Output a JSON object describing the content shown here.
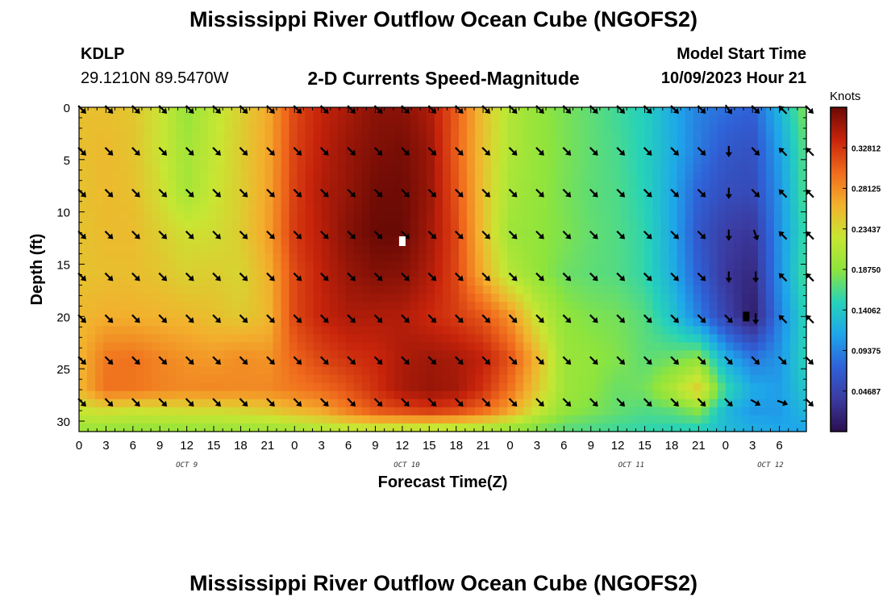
{
  "header": {
    "title": "Mississippi River Outflow Ocean Cube (NGOFS2)",
    "station_id": "KDLP",
    "station_coords": "29.1210N  89.5470W",
    "subtitle": "2-D Currents Speed-Magnitude",
    "start_label": "Model Start Time",
    "start_value": "10/09/2023 Hour 21"
  },
  "footer": {
    "title": "Mississippi River Outflow Ocean Cube (NGOFS2)"
  },
  "colors": {
    "colormap": [
      "#2b0f4f",
      "#3b3aa0",
      "#2f62d8",
      "#1ea6ea",
      "#27d3b8",
      "#8ee43c",
      "#c8e633",
      "#f3b02d",
      "#f06a1c",
      "#c7230b",
      "#6a0a05"
    ],
    "arrow": "#000000"
  },
  "chart_data": {
    "type": "heatmap",
    "xlabel": "Forecast Time(Z)",
    "ylabel": "Depth (ft)",
    "x_range_hours": [
      0,
      81
    ],
    "x_tick_labels": [
      "0",
      "3",
      "6",
      "9",
      "12",
      "15",
      "18",
      "21",
      "0",
      "3",
      "6",
      "9",
      "12",
      "15",
      "18",
      "21",
      "0",
      "3",
      "6",
      "9",
      "12",
      "15",
      "18",
      "21",
      "0",
      "3",
      "6"
    ],
    "day_labels": [
      {
        "label": "OCT 9",
        "hour": 12
      },
      {
        "label": "OCT 10",
        "hour": 36.5
      },
      {
        "label": "OCT 11",
        "hour": 61.5
      },
      {
        "label": "OCT 12",
        "hour": 77
      }
    ],
    "ylim": [
      0,
      31
    ],
    "y_ticks": [
      0,
      5,
      10,
      15,
      20,
      25,
      30
    ],
    "colorbar": {
      "title": "Knots",
      "range": [
        0,
        0.375
      ],
      "ticks": [
        "0.32812",
        "0.28125",
        "0.23437",
        "0.18750",
        "0.14062",
        "0.09375",
        "0.04687"
      ]
    },
    "speed_grid": {
      "depths_ft": [
        0,
        4,
        8,
        12,
        16,
        20,
        24,
        27,
        29,
        31
      ],
      "hours": [
        0,
        3,
        6,
        9,
        12,
        15,
        18,
        21,
        24,
        27,
        30,
        33,
        36,
        39,
        42,
        45,
        48,
        51,
        54,
        57,
        60,
        63,
        66,
        69,
        72,
        75,
        78,
        81
      ],
      "speed_knots": [
        [
          0.252,
          0.252,
          0.247,
          0.228,
          0.193,
          0.218,
          0.241,
          0.265,
          0.318,
          0.338,
          0.35,
          0.362,
          0.362,
          0.348,
          0.307,
          0.251,
          0.211,
          0.192,
          0.18,
          0.17,
          0.159,
          0.146,
          0.118,
          0.092,
          0.083,
          0.073,
          0.124,
          0.184
        ],
        [
          0.252,
          0.256,
          0.249,
          0.227,
          0.2,
          0.221,
          0.243,
          0.266,
          0.321,
          0.342,
          0.357,
          0.366,
          0.37,
          0.356,
          0.306,
          0.25,
          0.209,
          0.193,
          0.181,
          0.171,
          0.162,
          0.147,
          0.12,
          0.089,
          0.066,
          0.059,
          0.111,
          0.171
        ],
        [
          0.25,
          0.256,
          0.252,
          0.232,
          0.202,
          0.225,
          0.242,
          0.268,
          0.323,
          0.347,
          0.358,
          0.372,
          0.373,
          0.357,
          0.312,
          0.25,
          0.204,
          0.192,
          0.18,
          0.17,
          0.164,
          0.149,
          0.116,
          0.074,
          0.057,
          0.053,
          0.103,
          0.167
        ],
        [
          0.25,
          0.255,
          0.255,
          0.241,
          0.23,
          0.231,
          0.243,
          0.27,
          0.326,
          0.344,
          0.364,
          0.375,
          0.375,
          0.353,
          0.319,
          0.251,
          0.198,
          0.19,
          0.182,
          0.172,
          0.165,
          0.153,
          0.117,
          0.064,
          0.041,
          0.033,
          0.101,
          0.16
        ],
        [
          0.25,
          0.253,
          0.253,
          0.249,
          0.24,
          0.243,
          0.237,
          0.26,
          0.318,
          0.34,
          0.357,
          0.365,
          0.363,
          0.347,
          0.319,
          0.262,
          0.214,
          0.192,
          0.176,
          0.17,
          0.166,
          0.154,
          0.121,
          0.072,
          0.035,
          0.021,
          0.101,
          0.165
        ],
        [
          0.257,
          0.263,
          0.262,
          0.26,
          0.257,
          0.252,
          0.245,
          0.256,
          0.319,
          0.338,
          0.348,
          0.347,
          0.346,
          0.335,
          0.324,
          0.31,
          0.278,
          0.224,
          0.191,
          0.182,
          0.178,
          0.167,
          0.137,
          0.091,
          0.046,
          0.011,
          0.092,
          0.153
        ],
        [
          0.258,
          0.293,
          0.296,
          0.286,
          0.278,
          0.274,
          0.282,
          0.277,
          0.303,
          0.32,
          0.33,
          0.335,
          0.348,
          0.354,
          0.35,
          0.34,
          0.313,
          0.259,
          0.196,
          0.19,
          0.183,
          0.17,
          0.175,
          0.188,
          0.12,
          0.087,
          0.103,
          0.152
        ],
        [
          0.257,
          0.296,
          0.294,
          0.287,
          0.283,
          0.285,
          0.283,
          0.284,
          0.292,
          0.3,
          0.313,
          0.331,
          0.35,
          0.357,
          0.352,
          0.331,
          0.296,
          0.247,
          0.198,
          0.188,
          0.174,
          0.178,
          0.209,
          0.246,
          0.156,
          0.118,
          0.108,
          0.14
        ],
        [
          0.226,
          0.233,
          0.228,
          0.23,
          0.233,
          0.233,
          0.238,
          0.245,
          0.257,
          0.267,
          0.29,
          0.31,
          0.318,
          0.326,
          0.318,
          0.301,
          0.269,
          0.225,
          0.191,
          0.182,
          0.172,
          0.165,
          0.17,
          0.187,
          0.128,
          0.105,
          0.106,
          0.128
        ],
        [
          0.195,
          0.19,
          0.188,
          0.189,
          0.191,
          0.192,
          0.193,
          0.194,
          0.198,
          0.204,
          0.21,
          0.209,
          0.206,
          0.202,
          0.2,
          0.195,
          0.185,
          0.175,
          0.167,
          0.162,
          0.158,
          0.153,
          0.148,
          0.143,
          0.13,
          0.12,
          0.115,
          0.11
        ]
      ]
    },
    "vector_field": {
      "depths_ft": [
        0,
        4,
        8,
        12,
        16,
        20,
        24,
        28
      ],
      "hours": [
        0,
        3,
        6,
        9,
        12,
        15,
        18,
        21,
        24,
        27,
        30,
        33,
        36,
        39,
        42,
        45,
        48,
        51,
        54,
        57,
        60,
        63,
        66,
        69,
        72,
        75,
        78,
        81
      ],
      "arrow_direction_deg": [
        [
          135,
          135,
          135,
          135,
          135,
          135,
          135,
          135,
          135,
          135,
          135,
          135,
          135,
          135,
          135,
          135,
          135,
          135,
          135,
          135,
          135,
          135,
          135,
          135,
          145,
          135,
          315,
          135
        ],
        [
          135,
          135,
          135,
          135,
          135,
          135,
          135,
          135,
          135,
          135,
          135,
          135,
          135,
          135,
          135,
          135,
          135,
          135,
          135,
          135,
          135,
          135,
          135,
          135,
          180,
          135,
          315,
          315
        ],
        [
          135,
          135,
          135,
          135,
          135,
          135,
          135,
          135,
          135,
          135,
          135,
          135,
          135,
          135,
          135,
          135,
          135,
          135,
          135,
          135,
          135,
          135,
          135,
          135,
          180,
          135,
          315,
          315
        ],
        [
          135,
          135,
          135,
          135,
          135,
          135,
          135,
          135,
          135,
          135,
          135,
          135,
          135,
          135,
          135,
          135,
          135,
          135,
          135,
          135,
          135,
          135,
          135,
          135,
          180,
          160,
          315,
          315
        ],
        [
          135,
          135,
          135,
          135,
          135,
          135,
          135,
          135,
          135,
          135,
          135,
          135,
          135,
          135,
          135,
          135,
          135,
          135,
          135,
          135,
          135,
          135,
          135,
          135,
          180,
          180,
          315,
          315
        ],
        [
          135,
          135,
          135,
          135,
          135,
          135,
          135,
          135,
          135,
          135,
          135,
          135,
          135,
          135,
          135,
          135,
          135,
          135,
          135,
          135,
          135,
          135,
          135,
          135,
          135,
          180,
          315,
          315
        ],
        [
          135,
          135,
          135,
          135,
          135,
          135,
          135,
          135,
          135,
          135,
          135,
          135,
          135,
          135,
          135,
          135,
          135,
          135,
          135,
          135,
          135,
          135,
          135,
          135,
          135,
          135,
          135,
          135
        ],
        [
          135,
          135,
          135,
          135,
          135,
          135,
          135,
          135,
          135,
          135,
          135,
          135,
          135,
          135,
          135,
          135,
          135,
          135,
          135,
          135,
          135,
          135,
          135,
          135,
          135,
          120,
          110,
          135
        ]
      ]
    },
    "markers": [
      {
        "hour": 36,
        "depth_ft": 12.8,
        "color": "#ffffff"
      },
      {
        "hour": 74.3,
        "depth_ft": 20,
        "color": "#000000"
      }
    ]
  }
}
